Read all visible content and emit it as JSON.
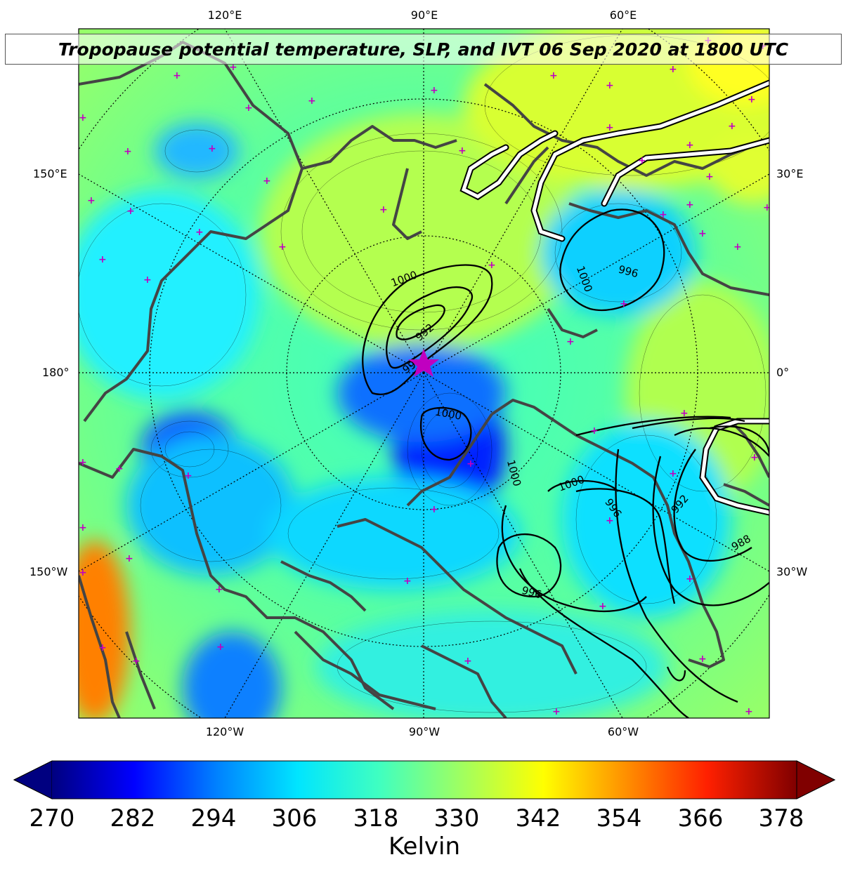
{
  "title": "Tropopause potential temperature, SLP, and IVT 06 Sep 2020 at 1800 UTC",
  "top_lon_labels": [
    "120°E",
    "90°E",
    "60°E"
  ],
  "bottom_lon_labels": [
    "120°W",
    "90°W",
    "60°W"
  ],
  "left_labels": [
    "150°E",
    "180°",
    "150°W"
  ],
  "right_labels": [
    "30°E",
    "0°",
    "30°W"
  ],
  "slp_contour_labels": [
    "1000",
    "992",
    "99",
    "1000",
    "1000",
    "1000",
    "996",
    "1000",
    "996",
    "992",
    "988",
    "996"
  ],
  "colorbar": {
    "ticks": [
      "270",
      "282",
      "294",
      "306",
      "318",
      "330",
      "342",
      "354",
      "366",
      "378"
    ],
    "label": "Kelvin",
    "colors": [
      "#000080",
      "#0000ff",
      "#0080ff",
      "#00e5ff",
      "#40ffc0",
      "#a0ff60",
      "#ffff00",
      "#ff9000",
      "#ff2000",
      "#800000"
    ]
  },
  "marker": "star"
}
